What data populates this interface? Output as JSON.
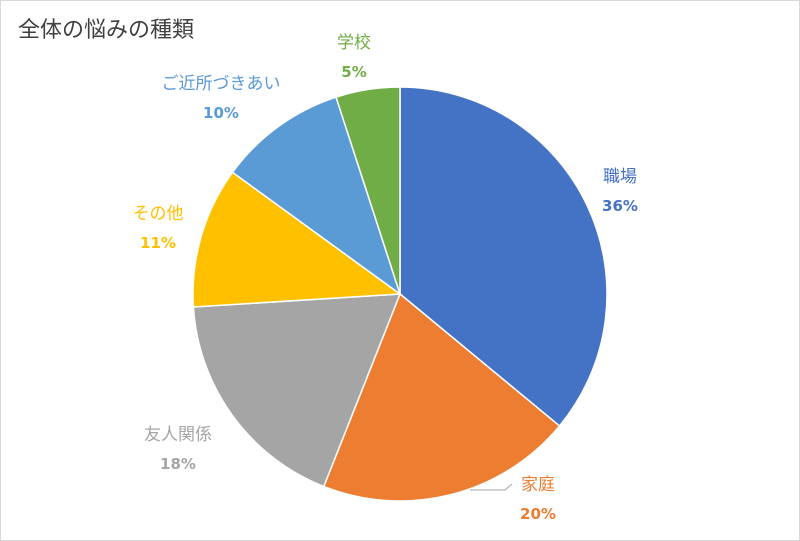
{
  "chart_data": {
    "type": "pie",
    "title": "全体の悩みの種類",
    "categories": [
      "職場",
      "家庭",
      "友人関係",
      "その他",
      "ご近所づきあい",
      "学校"
    ],
    "values": [
      36,
      20,
      18,
      11,
      10,
      5
    ],
    "value_labels": [
      "36%",
      "20%",
      "18%",
      "11%",
      "10%",
      "5%"
    ],
    "colors": [
      "#4472C4",
      "#ED7D31",
      "#A5A5A5",
      "#FFC000",
      "#5B9BD5",
      "#70AD47"
    ],
    "start_angle": "12 o'clock",
    "direction": "clockwise",
    "legend": "none",
    "labels": "outside slices"
  }
}
